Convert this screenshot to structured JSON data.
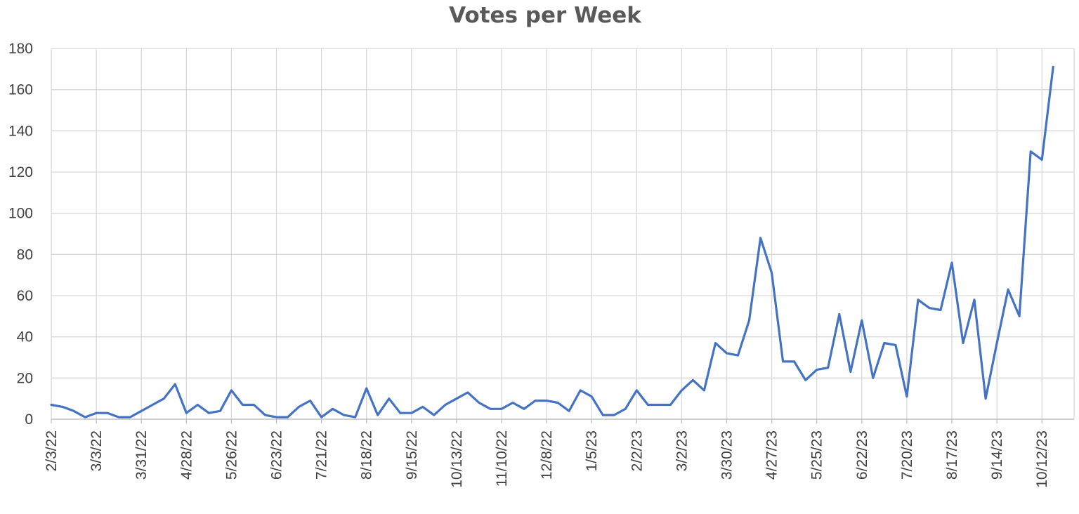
{
  "chart_data": {
    "type": "line",
    "title": "Votes per Week",
    "xlabel": "",
    "ylabel": "",
    "ylim": [
      0,
      180
    ],
    "yticks": [
      0,
      20,
      40,
      60,
      80,
      100,
      120,
      140,
      160,
      180
    ],
    "grid": true,
    "legend": "none",
    "line_color": "#4472C4",
    "x_tick_labels": [
      "2/3/22",
      "3/3/22",
      "3/31/22",
      "4/28/22",
      "5/26/22",
      "6/23/22",
      "7/21/22",
      "8/18/22",
      "9/15/22",
      "10/13/22",
      "11/10/22",
      "12/8/22",
      "1/5/23",
      "2/2/23",
      "3/2/23",
      "3/30/23",
      "4/27/23",
      "5/25/23",
      "6/22/23",
      "7/20/23",
      "8/17/23",
      "9/14/23",
      "10/12/23"
    ],
    "series": [
      {
        "values": [
          7,
          6,
          4,
          1,
          3,
          3,
          1,
          1,
          4,
          7,
          10,
          17,
          3,
          7,
          3,
          4,
          14,
          7,
          7,
          2,
          1,
          1,
          6,
          9,
          1,
          5,
          2,
          1,
          15,
          2,
          10,
          3,
          3,
          6,
          2,
          7,
          10,
          13,
          8,
          5,
          5,
          8,
          5,
          9,
          9,
          8,
          4,
          14,
          11,
          2,
          2,
          5,
          14,
          7,
          7,
          7,
          14,
          19,
          14,
          37,
          32,
          31,
          48,
          88,
          71,
          28,
          28,
          19,
          24,
          25,
          51,
          23,
          48,
          20,
          37,
          36,
          11,
          58,
          54,
          53,
          76,
          37,
          58,
          10,
          37,
          63,
          50,
          130,
          126,
          171
        ]
      }
    ]
  }
}
